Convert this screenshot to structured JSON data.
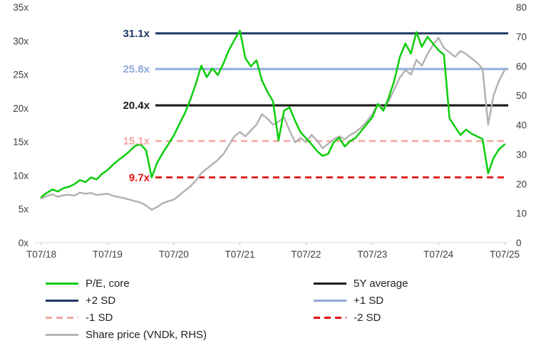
{
  "chart_data": {
    "type": "line",
    "title": "",
    "x_ticks": [
      "T07/18",
      "T07/19",
      "T07/20",
      "T07/21",
      "T07/22",
      "T07/23",
      "T07/24",
      "T07/25"
    ],
    "left_axis": {
      "min": 0,
      "max": 35,
      "ticks": [
        "0x",
        "5x",
        "10x",
        "15x",
        "20x",
        "25x",
        "30x",
        "35x"
      ]
    },
    "right_axis": {
      "min": 0,
      "max": 80,
      "ticks": [
        "0",
        "10",
        "20",
        "30",
        "40",
        "50",
        "60",
        "70",
        "80"
      ]
    },
    "x": [
      "2018-07",
      "2018-08",
      "2018-09",
      "2018-10",
      "2018-11",
      "2018-12",
      "2019-01",
      "2019-02",
      "2019-03",
      "2019-04",
      "2019-05",
      "2019-06",
      "2019-07",
      "2019-08",
      "2019-09",
      "2019-10",
      "2019-11",
      "2019-12",
      "2020-01",
      "2020-02",
      "2020-03",
      "2020-04",
      "2020-05",
      "2020-06",
      "2020-07",
      "2020-08",
      "2020-09",
      "2020-10",
      "2020-11",
      "2020-12",
      "2021-01",
      "2021-02",
      "2021-03",
      "2021-04",
      "2021-05",
      "2021-06",
      "2021-07",
      "2021-08",
      "2021-09",
      "2021-10",
      "2021-11",
      "2021-12",
      "2022-01",
      "2022-02",
      "2022-03",
      "2022-04",
      "2022-05",
      "2022-06",
      "2022-07",
      "2022-08",
      "2022-09",
      "2022-10",
      "2022-11",
      "2022-12",
      "2023-01",
      "2023-02",
      "2023-03",
      "2023-04",
      "2023-05",
      "2023-06",
      "2023-07",
      "2023-08",
      "2023-09",
      "2023-10",
      "2023-11",
      "2023-12",
      "2024-01",
      "2024-02",
      "2024-03",
      "2024-04",
      "2024-05",
      "2024-06",
      "2024-07",
      "2024-08",
      "2024-09",
      "2024-10",
      "2024-11",
      "2024-12",
      "2025-01",
      "2025-02",
      "2025-03",
      "2025-04",
      "2025-05",
      "2025-06",
      "2025-07"
    ],
    "series": [
      {
        "name": "P/E, core",
        "axis": "left",
        "color": "#0ACD0A",
        "style": "solid",
        "values": [
          6.8,
          7.4,
          7.9,
          7.6,
          8.1,
          8.3,
          8.7,
          9.3,
          9.0,
          9.7,
          9.4,
          10.2,
          10.8,
          11.6,
          12.3,
          12.9,
          13.6,
          14.4,
          14.6,
          13.7,
          9.7,
          11.9,
          13.3,
          14.6,
          15.9,
          17.6,
          19.2,
          21.2,
          23.6,
          26.3,
          24.6,
          25.9,
          24.9,
          26.6,
          28.6,
          30.1,
          31.5,
          27.4,
          26.2,
          27.1,
          24.1,
          22.4,
          21.0,
          15.2,
          19.6,
          20.1,
          18.1,
          16.4,
          15.5,
          14.6,
          13.6,
          12.9,
          13.2,
          14.9,
          15.6,
          14.3,
          15.1,
          15.6,
          16.6,
          17.6,
          18.6,
          20.6,
          19.6,
          21.6,
          24.1,
          27.6,
          29.6,
          28.1,
          31.3,
          29.1,
          30.6,
          29.6,
          28.6,
          27.9,
          18.5,
          17.2,
          16.0,
          16.8,
          16.2,
          15.8,
          15.4,
          10.3,
          12.6,
          13.9,
          14.6
        ]
      },
      {
        "name": "Share price (VNDk, RHS)",
        "axis": "right",
        "color": "#B3B3B3",
        "style": "solid",
        "values": [
          15.0,
          15.8,
          16.4,
          15.6,
          16.1,
          16.3,
          16.0,
          17.0,
          16.6,
          16.9,
          16.2,
          16.4,
          16.6,
          15.9,
          15.5,
          15.1,
          14.6,
          14.1,
          13.6,
          12.6,
          11.2,
          12.1,
          13.4,
          14.1,
          14.6,
          16.1,
          17.6,
          19.1,
          21.1,
          23.6,
          25.1,
          26.6,
          28.1,
          30.1,
          33.1,
          36.1,
          37.6,
          36.1,
          38.1,
          40.1,
          43.6,
          42.1,
          40.1,
          41.1,
          42.6,
          38.1,
          34.1,
          35.6,
          34.1,
          36.6,
          34.6,
          32.1,
          33.6,
          35.1,
          36.1,
          35.1,
          36.6,
          37.6,
          39.1,
          41.1,
          43.6,
          47.1,
          45.6,
          48.1,
          52.1,
          56.1,
          58.6,
          57.1,
          62.1,
          60.1,
          64.1,
          67.1,
          69.6,
          66.1,
          64.6,
          63.1,
          65.1,
          64.1,
          62.6,
          61.1,
          59.1,
          40.1,
          50.1,
          55.1,
          58.6
        ]
      }
    ],
    "reference_lines": [
      {
        "name": "+2 SD",
        "label": "31.1x",
        "value": 31.1,
        "axis": "left",
        "color": "#1F3864",
        "style": "solid"
      },
      {
        "name": "+1 SD",
        "label": "25.8x",
        "value": 25.8,
        "axis": "left",
        "color": "#8FAADC",
        "style": "solid"
      },
      {
        "name": "5Y average",
        "label": "20.4x",
        "value": 20.4,
        "axis": "left",
        "color": "#1A1A1A",
        "style": "solid"
      },
      {
        "name": "-1 SD",
        "label": "15.1x",
        "value": 15.1,
        "axis": "left",
        "color": "#F2A9A1",
        "style": "dashed"
      },
      {
        "name": "-2 SD",
        "label": "9.7x",
        "value": 9.7,
        "axis": "left",
        "color": "#E01010",
        "style": "dashed"
      }
    ],
    "legend": [
      {
        "label": "P/E, core",
        "color": "#0ACD0A",
        "style": "solid",
        "column": 0
      },
      {
        "label": "5Y average",
        "color": "#1A1A1A",
        "style": "solid",
        "column": 1
      },
      {
        "label": "+2 SD",
        "color": "#1F3864",
        "style": "solid",
        "column": 0
      },
      {
        "label": "+1 SD",
        "color": "#8FAADC",
        "style": "solid",
        "column": 1
      },
      {
        "label": "-1 SD",
        "color": "#F2A9A1",
        "style": "dashed",
        "column": 0
      },
      {
        "label": "-2 SD",
        "color": "#E01010",
        "style": "dashed",
        "column": 1
      },
      {
        "label": "Share price (VNDk, RHS)",
        "color": "#B3B3B3",
        "style": "solid",
        "column": 0
      }
    ]
  }
}
